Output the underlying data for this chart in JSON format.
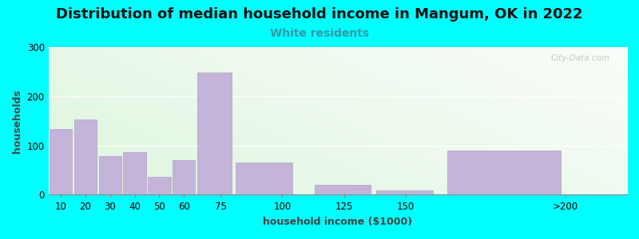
{
  "title": "Distribution of median household income in Mangum, OK in 2022",
  "subtitle": "White residents",
  "xlabel": "household income ($1000)",
  "ylabel": "households",
  "background_color": "#00FFFF",
  "bar_color": "#C4B4D9",
  "bar_edge_color": "#B0A0C8",
  "categories": [
    "10",
    "20",
    "30",
    "40",
    "50",
    "60",
    "75",
    "100",
    "125",
    "150",
    ">200"
  ],
  "left_edges": [
    5,
    15,
    25,
    35,
    45,
    55,
    65,
    80,
    112,
    137,
    165
  ],
  "widths": [
    10,
    10,
    10,
    10,
    10,
    10,
    15,
    25,
    25,
    25,
    50
  ],
  "tick_positions": [
    10,
    20,
    30,
    40,
    50,
    60,
    75,
    100,
    125,
    150,
    215
  ],
  "tick_labels": [
    "10",
    "20",
    "30",
    "40",
    "50",
    "60",
    "75",
    "100",
    "125",
    "150",
    ">200"
  ],
  "values": [
    133,
    152,
    78,
    87,
    37,
    70,
    248,
    65,
    20,
    8,
    90
  ],
  "xlim": [
    5,
    240
  ],
  "ylim": [
    0,
    300
  ],
  "yticks": [
    0,
    100,
    200,
    300
  ],
  "title_fontsize": 13,
  "subtitle_fontsize": 10,
  "subtitle_color": "#3399AA",
  "axis_label_fontsize": 9,
  "tick_label_fontsize": 8.5,
  "watermark": "City-Data.com"
}
